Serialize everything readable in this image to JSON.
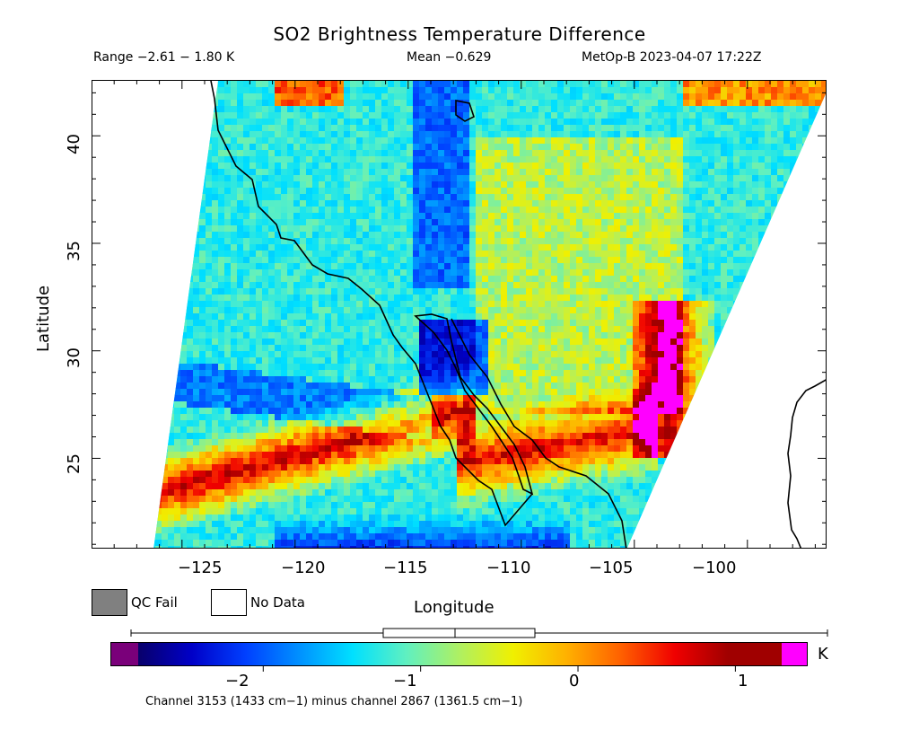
{
  "header": {
    "title": "SO2 Brightness Temperature Difference",
    "range_text": "Range −2.61 − 1.80 K",
    "mean_text": "Mean −0.629",
    "satellite_time": "MetOp-B 2023-04-07 17:22Z"
  },
  "axes": {
    "xlabel": "Longitude",
    "ylabel": "Latitude",
    "x_ticks": [
      "−125",
      "−120",
      "−115",
      "−110",
      "−105",
      "−100"
    ],
    "y_ticks": [
      "25",
      "30",
      "35",
      "40"
    ]
  },
  "legend": {
    "qc_fail": "QC Fail",
    "no_data": "No Data",
    "qc_fail_color": "#808080",
    "no_data_color": "#ffffff"
  },
  "colorbar": {
    "unit": "K",
    "ticks": [
      "−2",
      "−1",
      "0",
      "1"
    ],
    "colors": [
      "#7a007a",
      "#08006b",
      "#0000c8",
      "#0040ff",
      "#0090ff",
      "#00e0ff",
      "#60f0c0",
      "#b0f060",
      "#f0f000",
      "#ffb000",
      "#ff6000",
      "#f00000",
      "#a00000",
      "#ff00ff"
    ]
  },
  "footnote": "Channel 3153 (1433 cm−1) minus channel 2867 (1361.5 cm−1)",
  "chart_data": {
    "type": "heatmap",
    "title": "SO2 Brightness Temperature Difference",
    "xlabel": "Longitude",
    "ylabel": "Latitude",
    "xlim": [
      -129,
      -96.5
    ],
    "ylim": [
      20.8,
      42.6
    ],
    "x_ticks": [
      -125,
      -120,
      -115,
      -110,
      -105,
      -100
    ],
    "y_ticks": [
      25,
      30,
      35,
      40
    ],
    "color_range": [
      -2.8,
      1.3
    ],
    "colorbar_ticks": [
      -2,
      -1,
      0,
      1
    ],
    "unit": "K",
    "range": [
      -2.61,
      1.8
    ],
    "mean": -0.629
  }
}
